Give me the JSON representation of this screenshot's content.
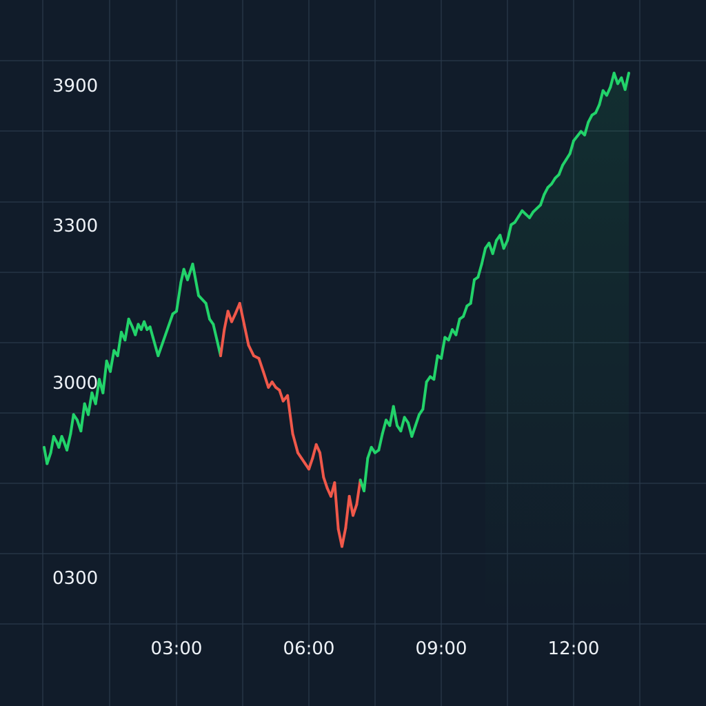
{
  "chart_data": {
    "type": "line",
    "title": "",
    "xlabel": "",
    "ylabel": "",
    "grid": true,
    "legend": "none",
    "y_tick_labels": [
      "3900",
      "3300",
      "3000",
      "0300"
    ],
    "x_tick_labels": [
      "03:00",
      "06:00",
      "09:00",
      "12:00"
    ],
    "colors": {
      "background": "#111c2a",
      "grid": "#2b3a4b",
      "up": "#22d36a",
      "down": "#f0584a",
      "tick_text": "#eef2f7"
    },
    "series": [
      {
        "points": [
          [
            "00:00",
            2880
          ],
          [
            "00:04",
            2850
          ],
          [
            "00:09",
            2870
          ],
          [
            "00:13",
            2900
          ],
          [
            "00:17",
            2890
          ],
          [
            "00:20",
            2880
          ],
          [
            "00:24",
            2900
          ],
          [
            "00:27",
            2890
          ],
          [
            "00:31",
            2875
          ],
          [
            "00:36",
            2905
          ],
          [
            "00:40",
            2940
          ],
          [
            "00:45",
            2930
          ],
          [
            "00:50",
            2910
          ],
          [
            "00:55",
            2960
          ],
          [
            "01:00",
            2940
          ],
          [
            "01:05",
            2980
          ],
          [
            "01:10",
            2960
          ],
          [
            "01:15",
            3005
          ],
          [
            "01:20",
            2980
          ],
          [
            "01:25",
            3040
          ],
          [
            "01:30",
            3020
          ],
          [
            "01:35",
            3060
          ],
          [
            "01:40",
            3050
          ],
          [
            "01:45",
            3095
          ],
          [
            "01:50",
            3080
          ],
          [
            "01:55",
            3120
          ],
          [
            "02:00",
            3105
          ],
          [
            "02:04",
            3090
          ],
          [
            "02:08",
            3110
          ],
          [
            "02:12",
            3100
          ],
          [
            "02:16",
            3115
          ],
          [
            "02:20",
            3100
          ],
          [
            "02:24",
            3105
          ],
          [
            "02:28",
            3085
          ],
          [
            "02:35",
            3050
          ],
          [
            "02:45",
            3090
          ],
          [
            "02:55",
            3130
          ],
          [
            "03:00",
            3135
          ],
          [
            "03:06",
            3190
          ],
          [
            "03:10",
            3215
          ],
          [
            "03:15",
            3195
          ],
          [
            "03:22",
            3225
          ],
          [
            "03:30",
            3165
          ],
          [
            "03:40",
            3150
          ],
          [
            "03:45",
            3120
          ],
          [
            "03:50",
            3110
          ],
          [
            "03:55",
            3080
          ],
          [
            "04:00",
            3050
          ],
          [
            "04:05",
            3100
          ],
          [
            "04:10",
            3135
          ],
          [
            "04:15",
            3115
          ],
          [
            "04:20",
            3130
          ],
          [
            "04:26",
            3150
          ],
          [
            "04:32",
            3110
          ],
          [
            "04:38",
            3070
          ],
          [
            "04:45",
            3050
          ],
          [
            "04:52",
            3045
          ],
          [
            "04:58",
            3020
          ],
          [
            "05:05",
            2990
          ],
          [
            "05:10",
            3000
          ],
          [
            "05:15",
            2990
          ],
          [
            "05:20",
            2985
          ],
          [
            "05:25",
            2965
          ],
          [
            "05:31",
            2975
          ],
          [
            "05:38",
            2905
          ],
          [
            "05:45",
            2870
          ],
          [
            "05:50",
            2860
          ],
          [
            "05:55",
            2850
          ],
          [
            "06:00",
            2840
          ],
          [
            "06:05",
            2860
          ],
          [
            "06:10",
            2885
          ],
          [
            "06:15",
            2870
          ],
          [
            "06:20",
            2825
          ],
          [
            "06:25",
            2805
          ],
          [
            "06:30",
            2790
          ],
          [
            "06:35",
            2815
          ],
          [
            "06:40",
            2730
          ],
          [
            "06:45",
            2698
          ],
          [
            "06:50",
            2732
          ],
          [
            "06:55",
            2790
          ],
          [
            "07:00",
            2755
          ],
          [
            "07:05",
            2775
          ],
          [
            "07:10",
            2820
          ],
          [
            "07:15",
            2800
          ],
          [
            "07:20",
            2860
          ],
          [
            "07:25",
            2880
          ],
          [
            "07:30",
            2870
          ],
          [
            "07:35",
            2875
          ],
          [
            "07:40",
            2905
          ],
          [
            "07:45",
            2930
          ],
          [
            "07:50",
            2920
          ],
          [
            "07:55",
            2955
          ],
          [
            "08:00",
            2920
          ],
          [
            "08:05",
            2910
          ],
          [
            "08:10",
            2935
          ],
          [
            "08:15",
            2925
          ],
          [
            "08:20",
            2900
          ],
          [
            "08:25",
            2920
          ],
          [
            "08:30",
            2940
          ],
          [
            "08:35",
            2950
          ],
          [
            "08:40",
            3000
          ],
          [
            "08:45",
            3010
          ],
          [
            "08:50",
            3005
          ],
          [
            "08:55",
            3050
          ],
          [
            "09:00",
            3045
          ],
          [
            "09:05",
            3085
          ],
          [
            "09:10",
            3080
          ],
          [
            "09:15",
            3100
          ],
          [
            "09:20",
            3090
          ],
          [
            "09:25",
            3120
          ],
          [
            "09:30",
            3125
          ],
          [
            "09:35",
            3145
          ],
          [
            "09:40",
            3150
          ],
          [
            "09:45",
            3195
          ],
          [
            "09:50",
            3200
          ],
          [
            "09:55",
            3225
          ],
          [
            "10:00",
            3255
          ],
          [
            "10:05",
            3265
          ],
          [
            "10:10",
            3245
          ],
          [
            "10:15",
            3270
          ],
          [
            "10:20",
            3280
          ],
          [
            "10:25",
            3255
          ],
          [
            "10:30",
            3270
          ],
          [
            "10:35",
            3300
          ],
          [
            "10:40",
            3310
          ],
          [
            "10:45",
            3335
          ],
          [
            "10:50",
            3360
          ],
          [
            "10:55",
            3345
          ],
          [
            "11:00",
            3330
          ],
          [
            "11:05",
            3355
          ],
          [
            "11:10",
            3370
          ],
          [
            "11:15",
            3385
          ],
          [
            "11:20",
            3430
          ],
          [
            "11:25",
            3460
          ],
          [
            "11:30",
            3475
          ],
          [
            "11:35",
            3500
          ],
          [
            "11:40",
            3515
          ],
          [
            "11:45",
            3555
          ],
          [
            "11:50",
            3580
          ],
          [
            "11:55",
            3605
          ],
          [
            "12:00",
            3660
          ],
          [
            "12:05",
            3680
          ],
          [
            "12:10",
            3700
          ],
          [
            "12:15",
            3685
          ],
          [
            "12:20",
            3740
          ],
          [
            "12:25",
            3770
          ],
          [
            "12:30",
            3780
          ],
          [
            "12:35",
            3815
          ],
          [
            "12:40",
            3875
          ],
          [
            "12:45",
            3855
          ],
          [
            "12:50",
            3890
          ],
          [
            "12:55",
            3950
          ],
          [
            "13:00",
            3905
          ],
          [
            "13:05",
            3930
          ],
          [
            "13:10",
            3880
          ],
          [
            "13:15",
            3950
          ]
        ]
      }
    ]
  }
}
